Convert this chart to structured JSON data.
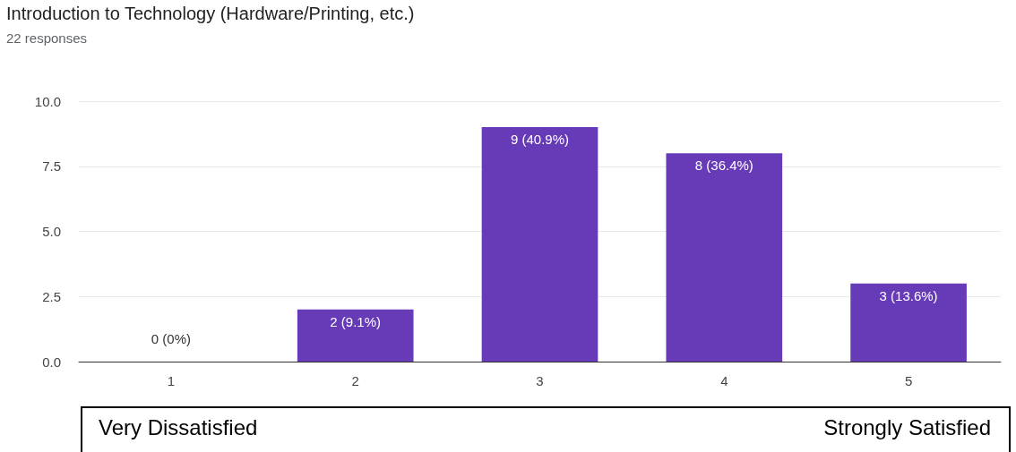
{
  "chart_data": {
    "type": "bar",
    "title": "Introduction to Technology (Hardware/Printing, etc.)",
    "subtitle": "22 responses",
    "categories": [
      "1",
      "2",
      "3",
      "4",
      "5"
    ],
    "values": [
      0,
      2,
      9,
      8,
      3
    ],
    "value_labels": [
      "0 (0%)",
      "2 (9.1%)",
      "9 (40.9%)",
      "8 (36.4%)",
      "3 (13.6%)"
    ],
    "color": "#673ab7",
    "ylim": [
      0,
      10
    ],
    "yticks": [
      {
        "value": 0,
        "label": "0.0"
      },
      {
        "value": 2.5,
        "label": "2.5"
      },
      {
        "value": 5,
        "label": "5.0"
      },
      {
        "value": 7.5,
        "label": "7.5"
      },
      {
        "value": 10,
        "label": "10.0"
      }
    ],
    "grid": "y",
    "annotations": [
      "Very Dissatisfied",
      "Strongly Satisfied"
    ]
  }
}
